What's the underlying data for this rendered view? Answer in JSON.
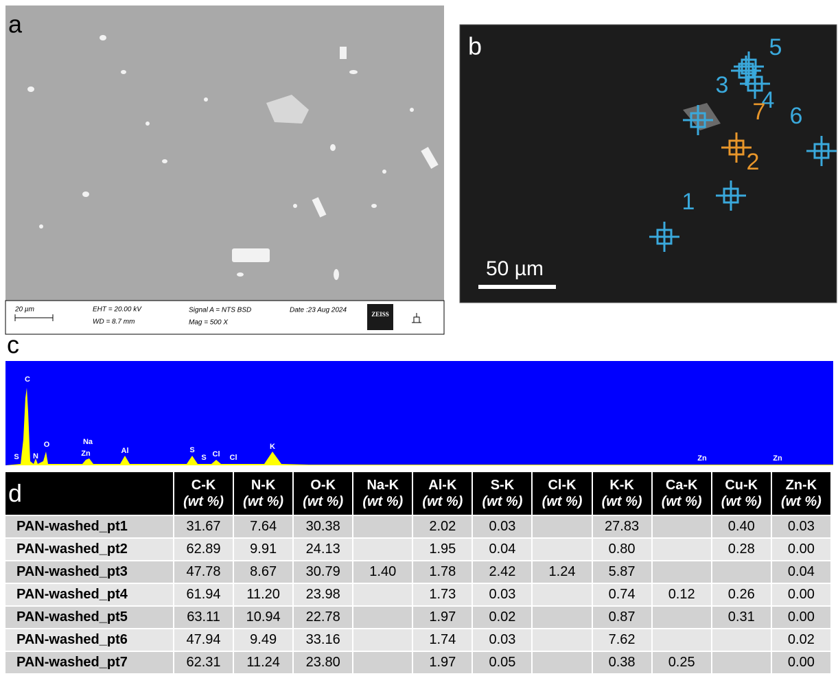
{
  "panels": {
    "a": {
      "label": "a",
      "footer": {
        "scale": "20 µm",
        "eht": "EHT = 20.00 kV",
        "wd": "WD =  8.7 mm",
        "signal": "Signal A = NTS BSD",
        "mag": "Mag =   500 X",
        "date": "Date :23 Aug 2024",
        "logo": "ZEISS"
      }
    },
    "b": {
      "label": "b",
      "points": [
        "1",
        "2",
        "3",
        "4",
        "5",
        "6",
        "7"
      ],
      "scale": "50 µm"
    },
    "c": {
      "label": "c",
      "peaks": [
        "C",
        "S",
        "N",
        "O",
        "Na",
        "Zn",
        "Al",
        "S",
        "S",
        "Cl",
        "Cl",
        "K",
        "Zn",
        "Zn"
      ]
    },
    "d": {
      "label": "d"
    }
  },
  "table": {
    "columns": [
      {
        "name": "C-K",
        "unit": "(wt %)"
      },
      {
        "name": "N-K",
        "unit": "(wt %)"
      },
      {
        "name": "O-K",
        "unit": "(wt %)"
      },
      {
        "name": "Na-K",
        "unit": "(wt %)"
      },
      {
        "name": "Al-K",
        "unit": "(wt %)"
      },
      {
        "name": "S-K",
        "unit": "(wt %)"
      },
      {
        "name": "Cl-K",
        "unit": "(wt %)"
      },
      {
        "name": "K-K",
        "unit": "(wt %)"
      },
      {
        "name": "Ca-K",
        "unit": "(wt %)"
      },
      {
        "name": "Cu-K",
        "unit": "(wt %)"
      },
      {
        "name": "Zn-K",
        "unit": "(wt %)"
      }
    ],
    "rows": [
      {
        "name": "PAN-washed_pt1",
        "cells": [
          "31.67",
          "7.64",
          "30.38",
          null,
          "2.02",
          "0.03",
          null,
          "27.83",
          null,
          "0.40",
          "0.03"
        ]
      },
      {
        "name": "PAN-washed_pt2",
        "cells": [
          "62.89",
          "9.91",
          "24.13",
          null,
          "1.95",
          "0.04",
          null,
          "0.80",
          null,
          "0.28",
          "0.00"
        ]
      },
      {
        "name": "PAN-washed_pt3",
        "cells": [
          "47.78",
          "8.67",
          "30.79",
          "1.40",
          "1.78",
          "2.42",
          "1.24",
          "5.87",
          null,
          null,
          "0.04"
        ]
      },
      {
        "name": "PAN-washed_pt4",
        "cells": [
          "61.94",
          "11.20",
          "23.98",
          null,
          "1.73",
          "0.03",
          null,
          "0.74",
          "0.12",
          "0.26",
          "0.00"
        ]
      },
      {
        "name": "PAN-washed_pt5",
        "cells": [
          "63.11",
          "10.94",
          "22.78",
          null,
          "1.97",
          "0.02",
          null,
          "0.87",
          null,
          "0.31",
          "0.00"
        ]
      },
      {
        "name": "PAN-washed_pt6",
        "cells": [
          "47.94",
          "9.49",
          "33.16",
          null,
          "1.74",
          "0.03",
          null,
          "7.62",
          null,
          null,
          "0.02"
        ]
      },
      {
        "name": "PAN-washed_pt7",
        "cells": [
          "62.31",
          "11.24",
          "23.80",
          null,
          "1.97",
          "0.05",
          null,
          "0.38",
          "0.25",
          null,
          "0.00"
        ]
      }
    ]
  }
}
